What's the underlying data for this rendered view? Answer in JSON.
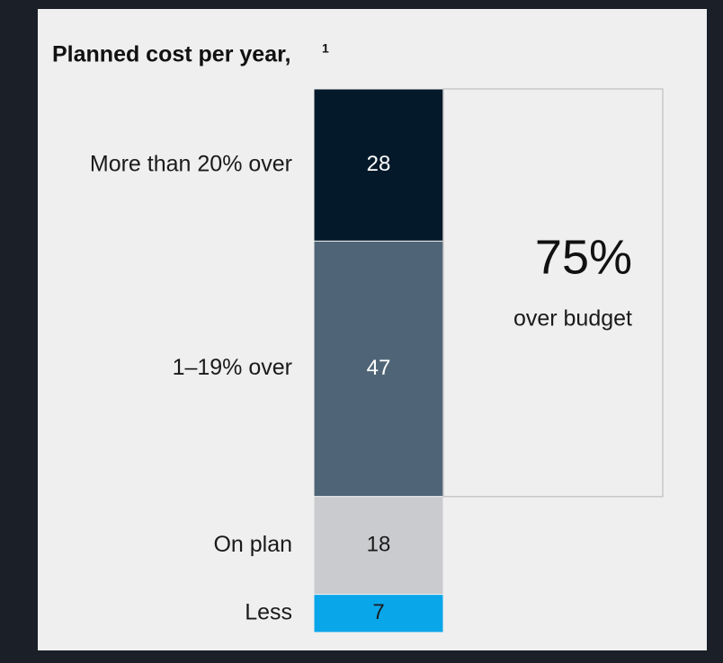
{
  "chart_data": {
    "type": "stacked-bar",
    "title": "Planned cost per year,",
    "title_footnote": "1",
    "categories": [
      "More than 20% over",
      "1–19% over",
      "On plan",
      "Less"
    ],
    "values": [
      28,
      47,
      18,
      7
    ],
    "colors": [
      "#041a2b",
      "#4f6577",
      "#c9cbce",
      "#0aa6ea"
    ],
    "label_colors": [
      "#ffffff",
      "#ffffff",
      "#1a1a1a",
      "#1a1a1a"
    ],
    "ylim": [
      0,
      100
    ],
    "annotation": {
      "value": "75%",
      "text": "over budget"
    }
  }
}
